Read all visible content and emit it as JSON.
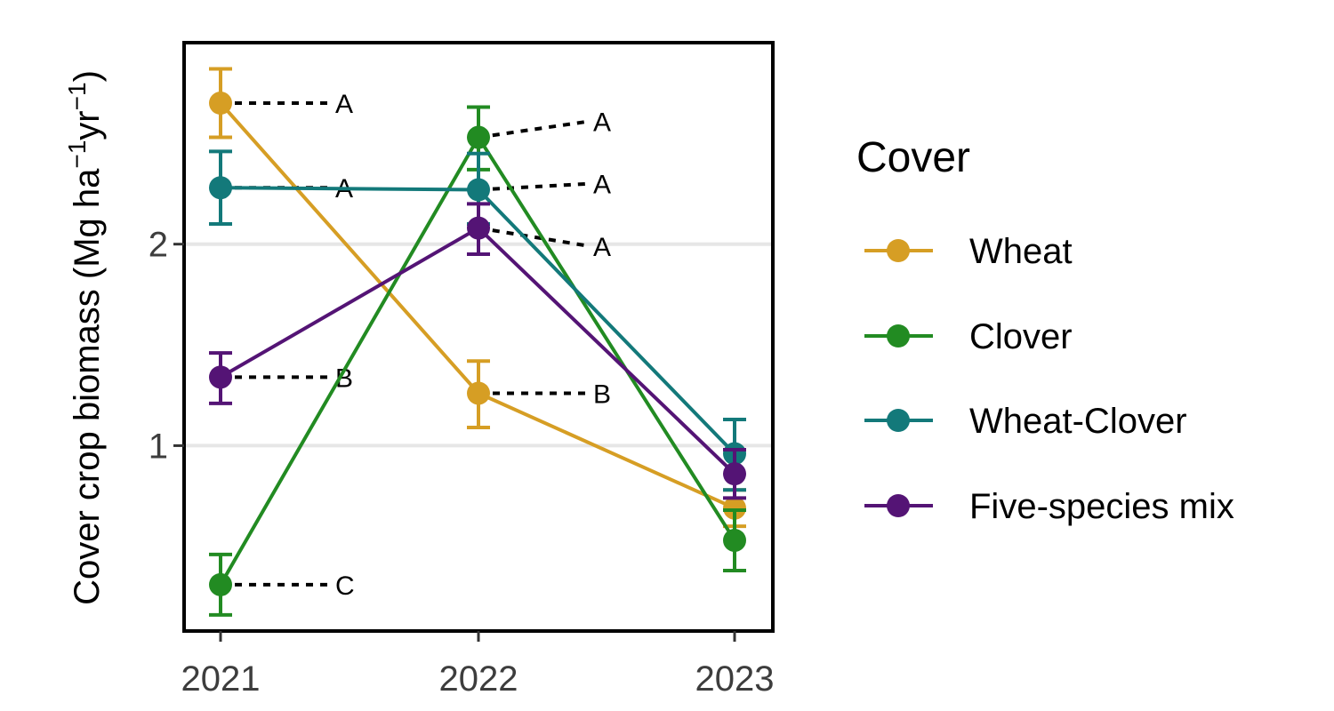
{
  "chart_data": {
    "type": "line",
    "title": "",
    "xlabel": "",
    "ylabel": "Cover crop biomass (Mg ha",
    "ylabel_sup1": "−1",
    "ylabel_mid": "yr",
    "ylabel_sup2": "−1",
    "ylabel_end": ")",
    "x": [
      "2021",
      "2022",
      "2023"
    ],
    "ylim": [
      0.08,
      3.0
    ],
    "yticks": [
      1,
      2
    ],
    "ytick_labels": [
      "1",
      "2"
    ],
    "grid": "horizontal major lines",
    "legend": {
      "title": "Cover",
      "position": "right"
    },
    "series": [
      {
        "name": "Wheat",
        "color": "#D69E24",
        "values": [
          2.7,
          1.26,
          0.69
        ],
        "err_low": [
          2.53,
          1.09,
          0.6
        ],
        "err_high": [
          2.87,
          1.42,
          0.78
        ]
      },
      {
        "name": "Clover",
        "color": "#228B22",
        "values": [
          0.31,
          2.53,
          0.53
        ],
        "err_low": [
          0.16,
          2.37,
          0.38
        ],
        "err_high": [
          0.46,
          2.68,
          0.68
        ]
      },
      {
        "name": "Wheat-Clover",
        "color": "#13797A",
        "values": [
          2.28,
          2.27,
          0.96
        ],
        "err_low": [
          2.1,
          2.1,
          0.78
        ],
        "err_high": [
          2.46,
          2.45,
          1.13
        ]
      },
      {
        "name": "Five-species mix",
        "color": "#541475",
        "values": [
          1.34,
          2.08,
          0.86
        ],
        "err_low": [
          1.21,
          1.95,
          0.74
        ],
        "err_high": [
          1.46,
          2.2,
          0.98
        ]
      }
    ],
    "annotations": [
      {
        "x": "2021",
        "y": 2.7,
        "label_y": 2.7,
        "text": "A"
      },
      {
        "x": "2021",
        "y": 2.28,
        "label_y": 2.28,
        "text": "A"
      },
      {
        "x": "2021",
        "y": 1.34,
        "label_y": 1.34,
        "text": "B"
      },
      {
        "x": "2021",
        "y": 0.31,
        "label_y": 0.31,
        "text": "C"
      },
      {
        "x": "2022",
        "y": 2.53,
        "label_y": 2.61,
        "text": "A"
      },
      {
        "x": "2022",
        "y": 2.27,
        "label_y": 2.3,
        "text": "A"
      },
      {
        "x": "2022",
        "y": 2.08,
        "label_y": 1.99,
        "text": "A"
      },
      {
        "x": "2022",
        "y": 1.26,
        "label_y": 1.26,
        "text": "B"
      }
    ]
  }
}
